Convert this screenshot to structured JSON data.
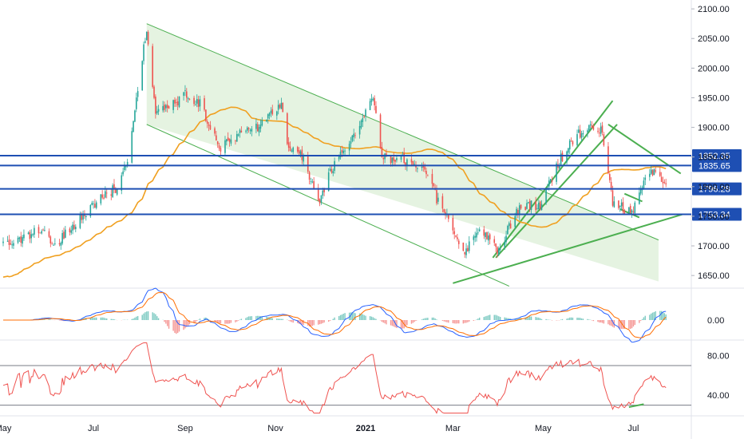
{
  "chart_data": [
    {
      "type": "candlestick",
      "panel": "price",
      "y_axis_ticks": [
        "2100.00",
        "2050.00",
        "2000.00",
        "1950.00",
        "1900.00",
        "1850.00",
        "1800.00",
        "1750.00",
        "1700.00",
        "1650.00"
      ],
      "ylim": [
        1630,
        2115
      ],
      "horizontal_levels": [
        {
          "value": 1852.35,
          "label": "1852.35"
        },
        {
          "value": 1835.65,
          "label": "1835.65"
        },
        {
          "value": 1796.28,
          "label": "1796.28"
        },
        {
          "value": 1753.34,
          "label": "1753.34"
        }
      ],
      "price_path": [
        [
          "2020-05-01",
          1705
        ],
        [
          "2020-05-15",
          1715
        ],
        [
          "2020-05-29",
          1730
        ],
        [
          "2020-06-05",
          1700
        ],
        [
          "2020-06-19",
          1740
        ],
        [
          "2020-07-03",
          1775
        ],
        [
          "2020-07-17",
          1800
        ],
        [
          "2020-07-24",
          1840
        ],
        [
          "2020-07-31",
          1960
        ],
        [
          "2020-08-06",
          2070
        ],
        [
          "2020-08-12",
          1920
        ],
        [
          "2020-08-21",
          1935
        ],
        [
          "2020-09-01",
          1955
        ],
        [
          "2020-09-11",
          1940
        ],
        [
          "2020-09-24",
          1865
        ],
        [
          "2020-10-08",
          1890
        ],
        [
          "2020-10-23",
          1905
        ],
        [
          "2020-11-05",
          1945
        ],
        [
          "2020-11-09",
          1870
        ],
        [
          "2020-11-20",
          1850
        ],
        [
          "2020-11-30",
          1770
        ],
        [
          "2020-12-10",
          1835
        ],
        [
          "2020-12-21",
          1870
        ],
        [
          "2021-01-06",
          1955
        ],
        [
          "2021-01-12",
          1850
        ],
        [
          "2021-01-27",
          1845
        ],
        [
          "2021-02-08",
          1838
        ],
        [
          "2021-02-18",
          1780
        ],
        [
          "2021-03-01",
          1730
        ],
        [
          "2021-03-08",
          1685
        ],
        [
          "2021-03-19",
          1735
        ],
        [
          "2021-03-31",
          1690
        ],
        [
          "2021-04-15",
          1765
        ],
        [
          "2021-04-30",
          1770
        ],
        [
          "2021-05-10",
          1835
        ],
        [
          "2021-05-21",
          1880
        ],
        [
          "2021-06-01",
          1905
        ],
        [
          "2021-06-10",
          1895
        ],
        [
          "2021-06-17",
          1775
        ],
        [
          "2021-06-29",
          1755
        ],
        [
          "2021-07-08",
          1805
        ],
        [
          "2021-07-15",
          1830
        ],
        [
          "2021-07-23",
          1800
        ]
      ],
      "moving_average": {
        "color": "#f0a020"
      },
      "channel": {
        "color": "#4caf50",
        "fill": "#e1f1dc"
      }
    },
    {
      "type": "line",
      "panel": "macd",
      "y_axis_ticks": [
        "0.00"
      ],
      "series": [
        {
          "color": "#2962ff"
        },
        {
          "color": "#ff6d00"
        }
      ]
    },
    {
      "type": "line",
      "panel": "rsi",
      "y_axis_ticks": [
        "80.00",
        "40.00"
      ],
      "ylim": [
        20,
        95
      ],
      "reference_lines": [
        70,
        30
      ],
      "series": [
        {
          "color": "#ef5350"
        }
      ]
    }
  ],
  "x_axis": {
    "labels": [
      {
        "text": "May",
        "date": "2020-05-01"
      },
      {
        "text": "Jul",
        "date": "2020-07-01"
      },
      {
        "text": "Sep",
        "date": "2020-09-01"
      },
      {
        "text": "Nov",
        "date": "2020-11-01"
      },
      {
        "text": "2021",
        "date": "2021-01-01",
        "bold": true
      },
      {
        "text": "Mar",
        "date": "2021-03-01"
      },
      {
        "text": "May",
        "date": "2021-05-01"
      },
      {
        "text": "Jul",
        "date": "2021-07-01"
      }
    ],
    "range": [
      "2020-05-01",
      "2021-08-07"
    ]
  },
  "colors": {
    "up": "#26a69a",
    "down": "#ef5350",
    "level_line": "#1e4fb3",
    "level_tag": "#1e4fb3",
    "trendline": "#4caf50"
  }
}
